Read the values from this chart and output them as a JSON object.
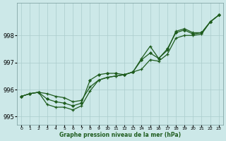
{
  "bg_color": "#cce8e8",
  "grid_color": "#aacccc",
  "line_color": "#1e5c1e",
  "xlabel": "Graphe pression niveau de la mer (hPa)",
  "xlim": [
    -0.5,
    23.5
  ],
  "ylim": [
    994.7,
    999.2
  ],
  "yticks": [
    995,
    996,
    997,
    998
  ],
  "xticks": [
    0,
    1,
    2,
    3,
    4,
    5,
    6,
    7,
    8,
    9,
    10,
    11,
    12,
    13,
    14,
    15,
    16,
    17,
    18,
    19,
    20,
    21,
    22,
    23
  ],
  "curve1_y": [
    995.75,
    995.85,
    995.9,
    995.85,
    995.75,
    995.7,
    995.55,
    995.6,
    996.1,
    996.35,
    996.45,
    996.5,
    996.55,
    996.65,
    996.75,
    997.1,
    997.05,
    997.3,
    997.9,
    998.0,
    998.0,
    998.05,
    998.5,
    998.75
  ],
  "curve2_y": [
    995.75,
    995.85,
    995.9,
    995.45,
    995.35,
    995.35,
    995.25,
    995.4,
    995.95,
    996.35,
    996.45,
    996.5,
    996.55,
    996.65,
    997.15,
    997.6,
    997.15,
    997.45,
    998.15,
    998.25,
    998.1,
    998.1,
    998.5,
    998.75
  ],
  "curve3_y": [
    995.75,
    995.85,
    995.9,
    995.65,
    995.55,
    995.5,
    995.4,
    995.5,
    996.35,
    996.55,
    996.6,
    996.6,
    996.55,
    996.65,
    997.1,
    997.35,
    997.15,
    997.5,
    998.1,
    998.2,
    998.05,
    998.1,
    998.5,
    998.75
  ]
}
